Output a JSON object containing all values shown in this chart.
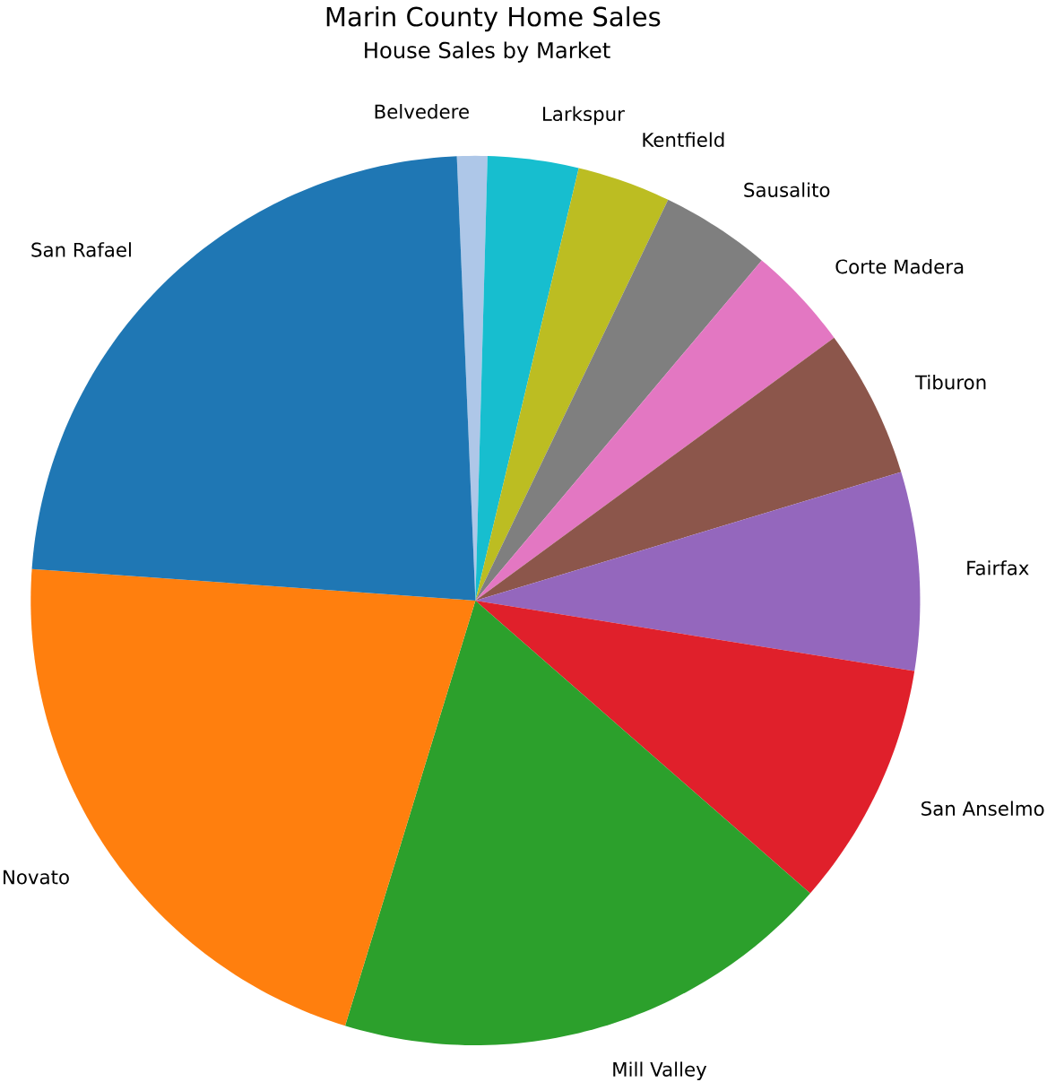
{
  "chart_data": {
    "type": "pie",
    "title": "Marin County Home Sales",
    "subtitle": "House Sales by Market",
    "categories": [
      "Belvedere",
      "Larkspur",
      "Kentfield",
      "Sausalito",
      "Corte Madera",
      "Tiburon",
      "Fairfax",
      "San Anselmo",
      "Mill Valley",
      "Novato",
      "San Rafael"
    ],
    "values": [
      1.1,
      3.3,
      3.4,
      4.0,
      3.8,
      5.4,
      7.2,
      8.9,
      18.3,
      21.4,
      23.2
    ],
    "colors": [
      "#aec7e8",
      "#17becf",
      "#bcbd22",
      "#7f7f7f",
      "#e377c2",
      "#8c564b",
      "#9467bd",
      "#e0202b",
      "#2ca02c",
      "#ff7f0e",
      "#1f77b4"
    ]
  }
}
